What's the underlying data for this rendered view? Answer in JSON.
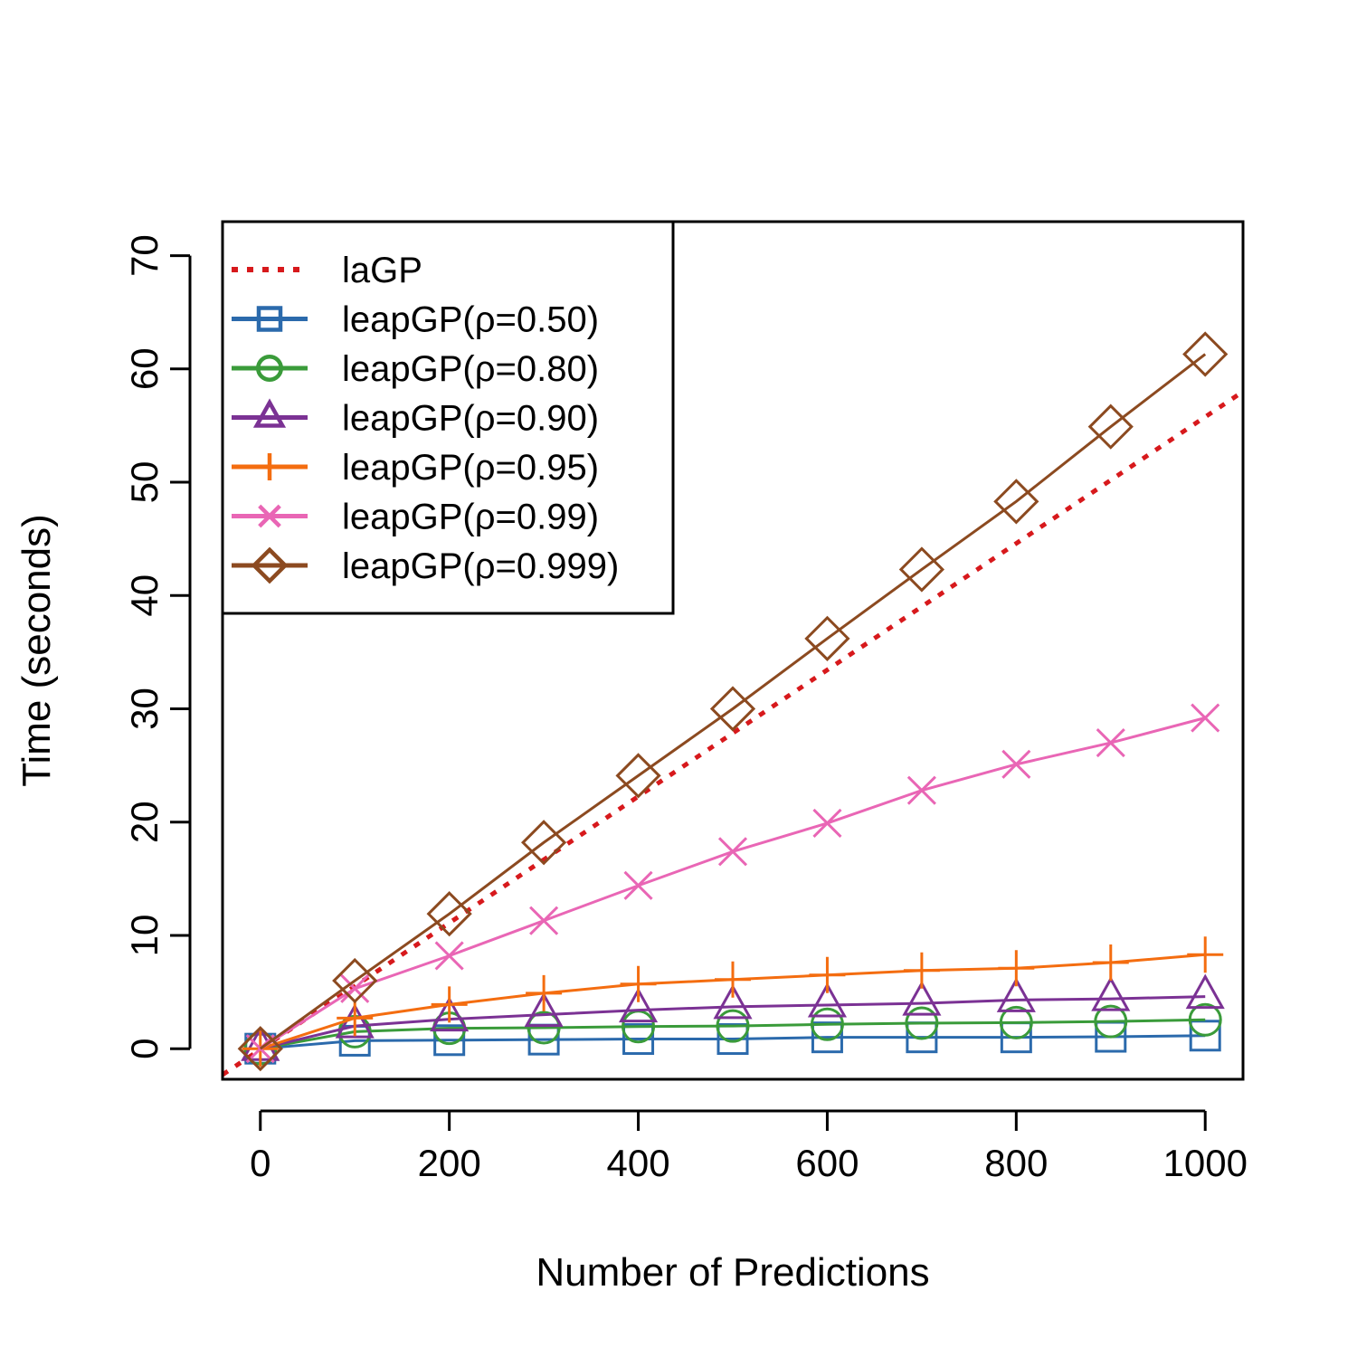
{
  "chart_data": {
    "type": "line",
    "title": "",
    "xlabel": "Number of Predictions",
    "ylabel": "Time (seconds)",
    "xlim": [
      -40,
      1040
    ],
    "ylim": [
      -2.7,
      73.0
    ],
    "xticks": [
      0,
      200,
      400,
      600,
      800,
      1000
    ],
    "yticks": [
      0,
      10,
      20,
      30,
      40,
      50,
      60,
      70
    ],
    "grid": false,
    "legend_position": "top-left",
    "x": [
      0,
      100,
      200,
      300,
      400,
      500,
      600,
      700,
      800,
      900,
      1000
    ],
    "series": [
      {
        "name": "laGP",
        "color": "#d7191c",
        "style": "dotted",
        "marker": "none",
        "line": [
          [
            -40,
            -2.3
          ],
          [
            1040,
            58.0
          ]
        ]
      },
      {
        "name": "leapGP(ρ=0.50)",
        "color": "#2b6aac",
        "marker": "square",
        "values": [
          0.0,
          0.7,
          0.75,
          0.8,
          0.85,
          0.85,
          1.0,
          1.0,
          1.0,
          1.05,
          1.15
        ]
      },
      {
        "name": "leapGP(ρ=0.80)",
        "color": "#3a9b3a",
        "marker": "circle",
        "values": [
          0.0,
          1.5,
          1.8,
          1.85,
          1.95,
          2.0,
          2.15,
          2.25,
          2.3,
          2.4,
          2.55
        ]
      },
      {
        "name": "leapGP(ρ=0.90)",
        "color": "#7b3294",
        "marker": "triangle",
        "values": [
          0.0,
          2.0,
          2.6,
          3.0,
          3.4,
          3.7,
          3.85,
          4.0,
          4.3,
          4.4,
          4.6
        ]
      },
      {
        "name": "leapGP(ρ=0.95)",
        "color": "#f46d10",
        "marker": "plus",
        "values": [
          0.0,
          2.7,
          3.9,
          4.9,
          5.7,
          6.1,
          6.5,
          6.9,
          7.1,
          7.6,
          8.3
        ]
      },
      {
        "name": "leapGP(ρ=0.99)",
        "color": "#e966b5",
        "marker": "x",
        "values": [
          0.0,
          5.3,
          8.2,
          11.3,
          14.4,
          17.4,
          19.9,
          22.8,
          25.1,
          27.0,
          29.2
        ]
      },
      {
        "name": "leapGP(ρ=0.999)",
        "color": "#8c4a20",
        "marker": "diamond",
        "values": [
          0.0,
          6.0,
          11.9,
          18.2,
          24.1,
          30.0,
          36.2,
          42.3,
          48.3,
          54.9,
          61.3
        ]
      }
    ]
  }
}
